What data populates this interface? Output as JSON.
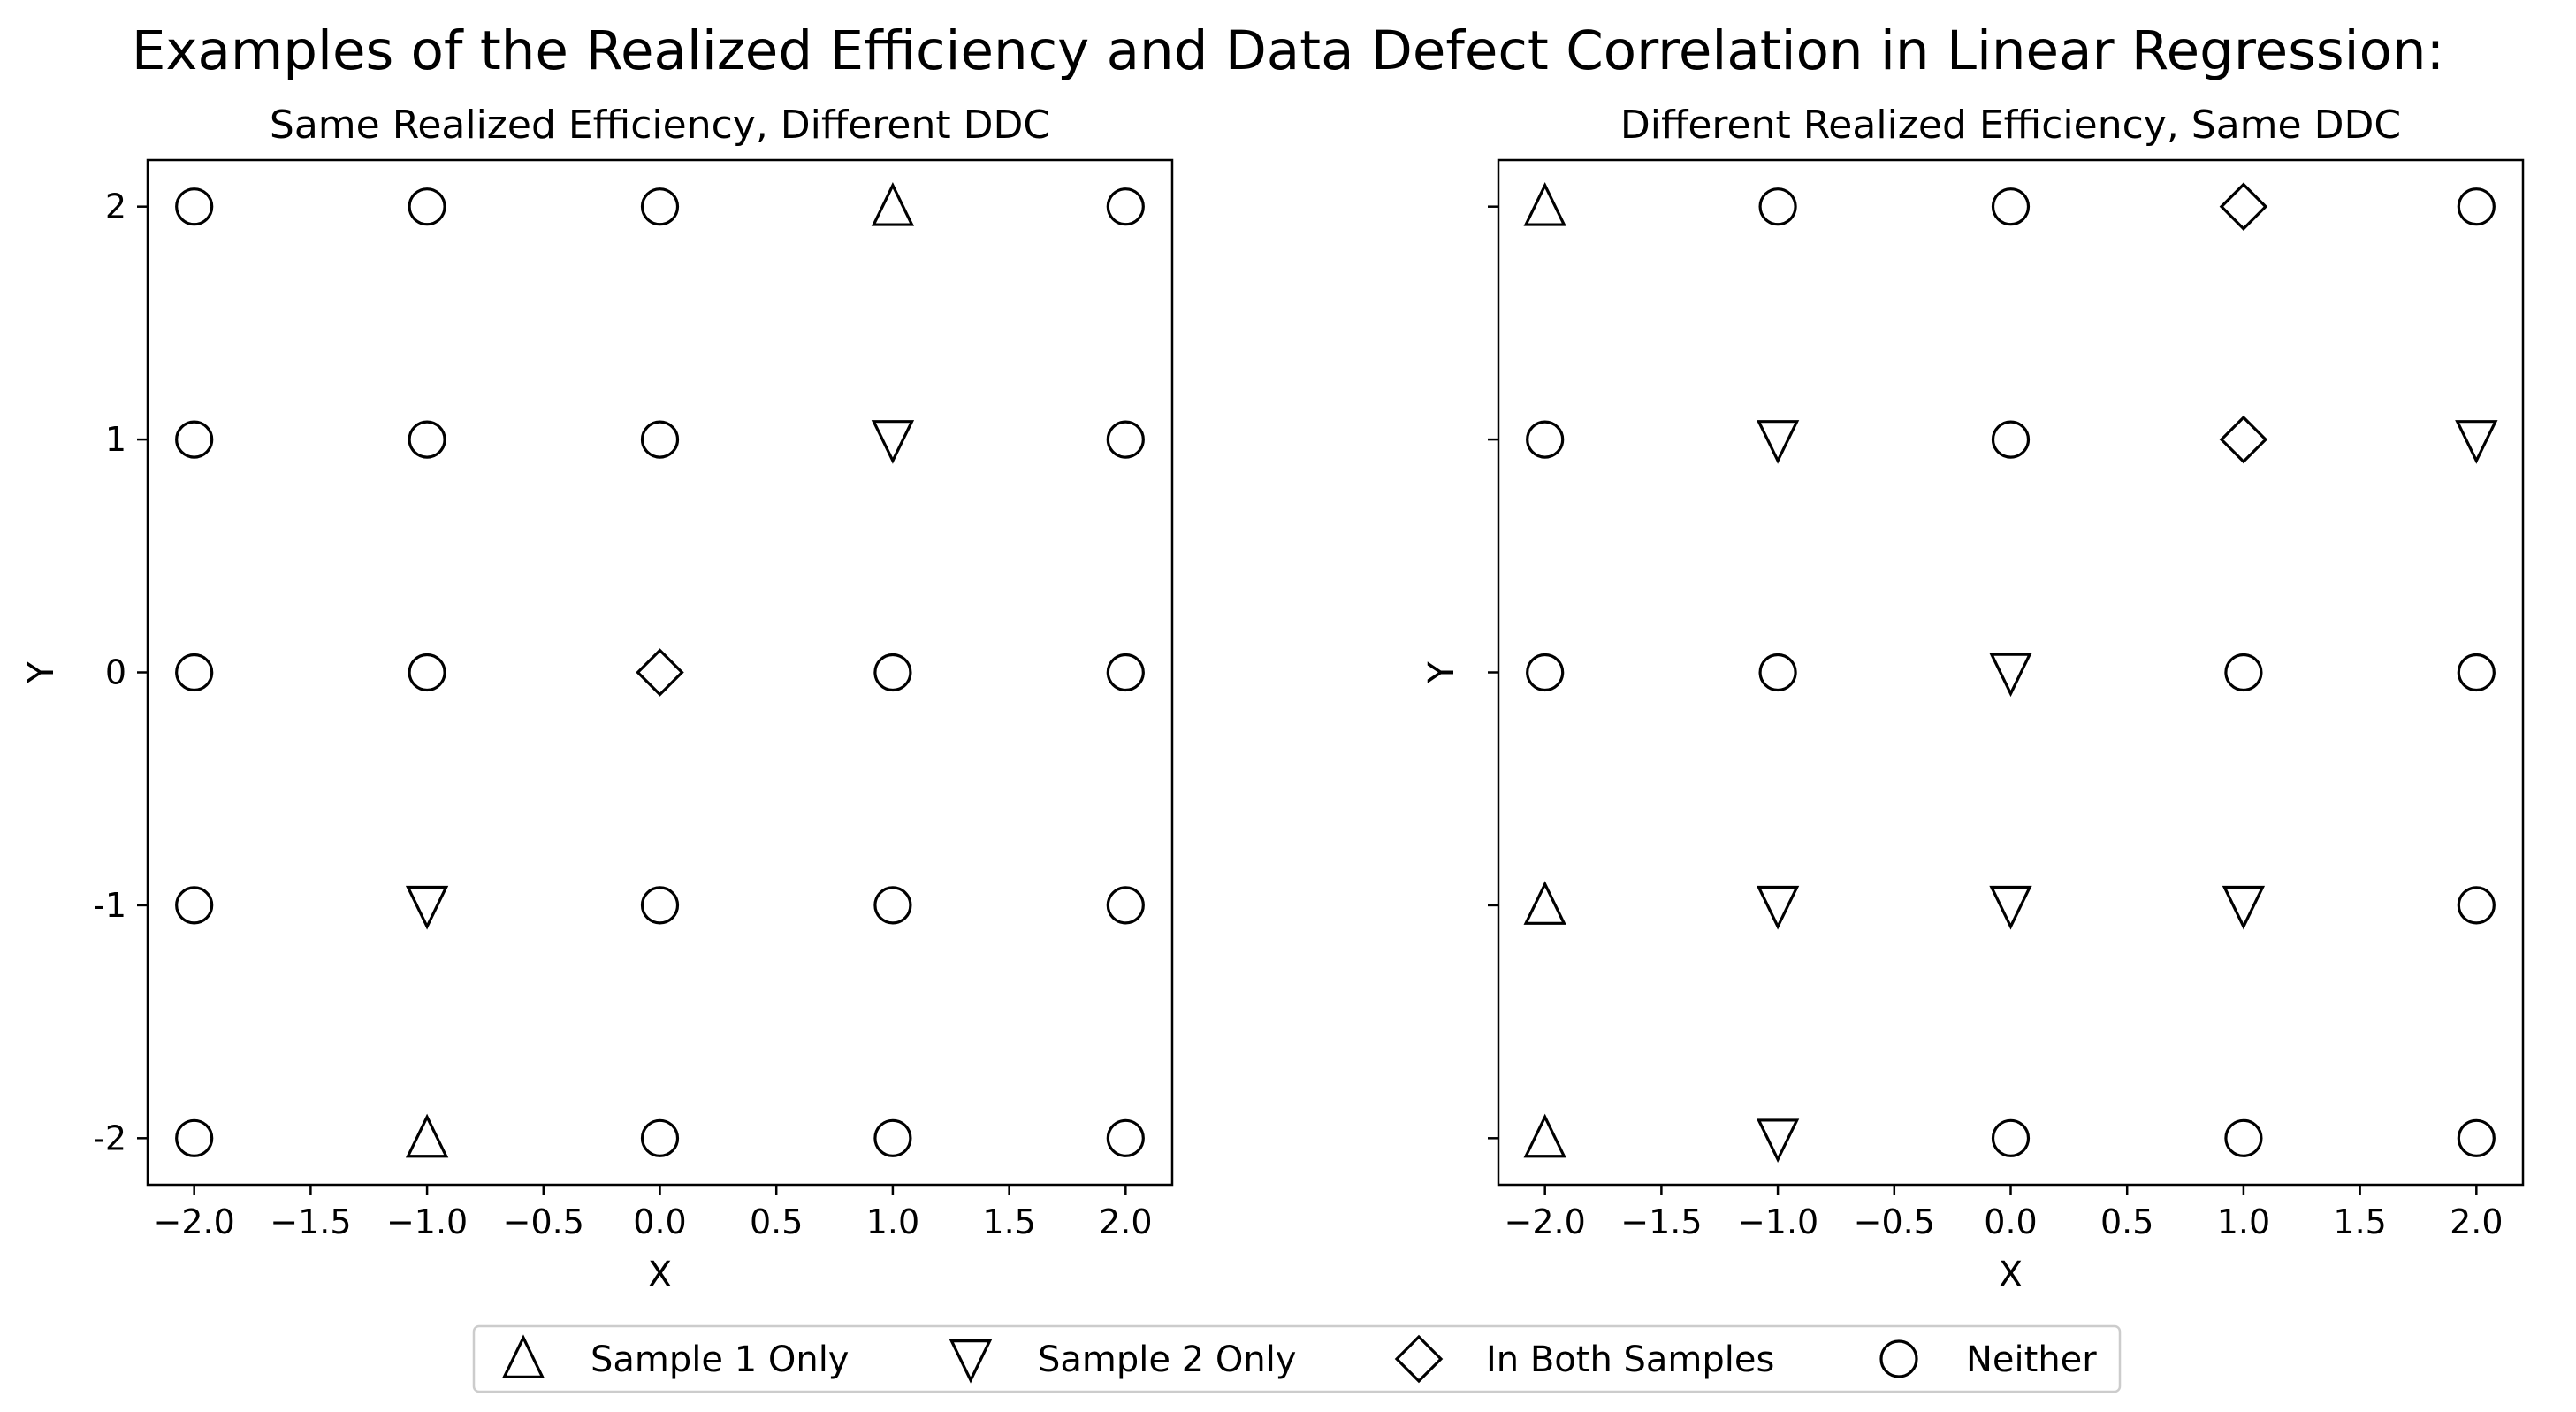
{
  "suptitle": "Examples of the Realized Efficiency and Data Defect Correlation in Linear Regression:",
  "legend": {
    "placement": "bottom-center",
    "entries": [
      {
        "marker": "triangle-up",
        "label": "Sample 1 Only"
      },
      {
        "marker": "triangle-down",
        "label": "Sample 2 Only"
      },
      {
        "marker": "diamond",
        "label": "In Both Samples"
      },
      {
        "marker": "circle",
        "label": "Neither"
      }
    ]
  },
  "chart_data": [
    {
      "type": "scatter",
      "title": "Same Realized Efficiency, Different DDC",
      "xlabel": "X",
      "ylabel": "Y",
      "xlim": [
        -2.2,
        2.2
      ],
      "ylim": [
        -2.2,
        2.2
      ],
      "xticks": [
        "-2.0",
        "-1.5",
        "-1.0",
        "-0.5",
        "0.0",
        "0.5",
        "1.0",
        "1.5",
        "2.0"
      ],
      "yticks": [
        "2",
        "1",
        "0",
        "-1",
        "-2"
      ],
      "grid": false,
      "x": [
        -2,
        -1,
        0,
        1,
        2
      ],
      "y": [
        2,
        1,
        0,
        -1,
        -2
      ],
      "markers": [
        [
          "circle",
          "circle",
          "circle",
          "triangle-up",
          "circle"
        ],
        [
          "circle",
          "circle",
          "circle",
          "triangle-down",
          "circle"
        ],
        [
          "circle",
          "circle",
          "diamond",
          "circle",
          "circle"
        ],
        [
          "circle",
          "triangle-down",
          "circle",
          "circle",
          "circle"
        ],
        [
          "circle",
          "triangle-up",
          "circle",
          "circle",
          "circle"
        ]
      ]
    },
    {
      "type": "scatter",
      "title": "Different Realized Efficiency, Same DDC",
      "xlabel": "X",
      "ylabel": "Y",
      "xlim": [
        -2.2,
        2.2
      ],
      "ylim": [
        -2.2,
        2.2
      ],
      "xticks": [
        "-2.0",
        "-1.5",
        "-1.0",
        "-0.5",
        "0.0",
        "0.5",
        "1.0",
        "1.5",
        "2.0"
      ],
      "yticks": [],
      "grid": false,
      "x": [
        -2,
        -1,
        0,
        1,
        2
      ],
      "y": [
        2,
        1,
        0,
        -1,
        -2
      ],
      "markers": [
        [
          "triangle-up",
          "circle",
          "circle",
          "diamond",
          "circle"
        ],
        [
          "circle",
          "triangle-down",
          "circle",
          "diamond",
          "triangle-down"
        ],
        [
          "circle",
          "circle",
          "triangle-down",
          "circle",
          "circle"
        ],
        [
          "triangle-up",
          "triangle-down",
          "triangle-down",
          "triangle-down",
          "circle"
        ],
        [
          "triangle-up",
          "triangle-down",
          "circle",
          "circle",
          "circle"
        ]
      ]
    }
  ]
}
